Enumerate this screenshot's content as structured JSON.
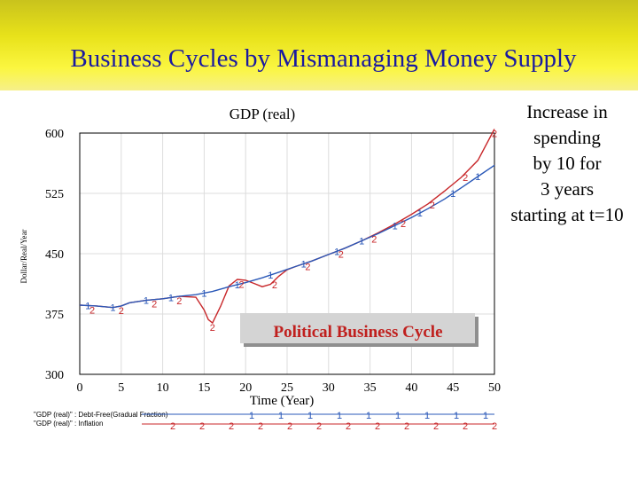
{
  "slide": {
    "title": "Business Cycles by Mismanaging Money Supply",
    "side_note": [
      "Increase in",
      "spending",
      "by 10 for",
      "3 years",
      "starting at t=10"
    ],
    "banner": "Political Business Cycle"
  },
  "colors": {
    "series1": "#2a58b8",
    "series2": "#c8272a",
    "header": "#e8e21a",
    "title": "#1a1aa0",
    "banner_text": "#c0201e"
  },
  "chart_data": {
    "type": "line",
    "title": "GDP (real)",
    "xlabel": "Time (Year)",
    "ylabel": "Dollar/Real/Year",
    "xlim": [
      0,
      50
    ],
    "ylim": [
      300,
      600
    ],
    "xticks": [
      0,
      5,
      10,
      15,
      20,
      25,
      30,
      35,
      40,
      45,
      50
    ],
    "yticks": [
      300,
      375,
      450,
      525,
      600
    ],
    "grid": true,
    "series": [
      {
        "name": "\"GDP (real)\" : Debt-Free(Gradual Fraction)",
        "marker": "1",
        "x": [
          0,
          2,
          4,
          5,
          6,
          8,
          10,
          12,
          14,
          16,
          18,
          20,
          22,
          24,
          26,
          28,
          30,
          32,
          34,
          36,
          38,
          40,
          42,
          44,
          46,
          48,
          50
        ],
        "y": [
          386,
          385,
          383,
          385,
          389,
          392,
          394,
          397,
          399,
          403,
          409,
          414,
          420,
          427,
          434,
          441,
          449,
          457,
          466,
          475,
          485,
          495,
          506,
          518,
          532,
          546,
          560
        ]
      },
      {
        "name": "\"GDP (real)\" : Inflation",
        "marker": "2",
        "x": [
          0,
          2,
          4,
          5,
          6,
          8,
          10,
          12,
          14,
          15,
          15.5,
          16,
          17,
          18,
          19,
          20,
          21,
          22,
          23,
          24,
          25,
          26,
          28,
          30,
          32,
          34,
          36,
          38,
          40,
          42,
          44,
          46,
          48,
          50
        ],
        "y": [
          386,
          385,
          383,
          385,
          389,
          392,
          394,
          397,
          396,
          380,
          368,
          364,
          385,
          410,
          418,
          417,
          413,
          409,
          412,
          422,
          430,
          434,
          441,
          449,
          457,
          466,
          476,
          487,
          499,
          512,
          528,
          545,
          566,
          605
        ]
      }
    ]
  }
}
